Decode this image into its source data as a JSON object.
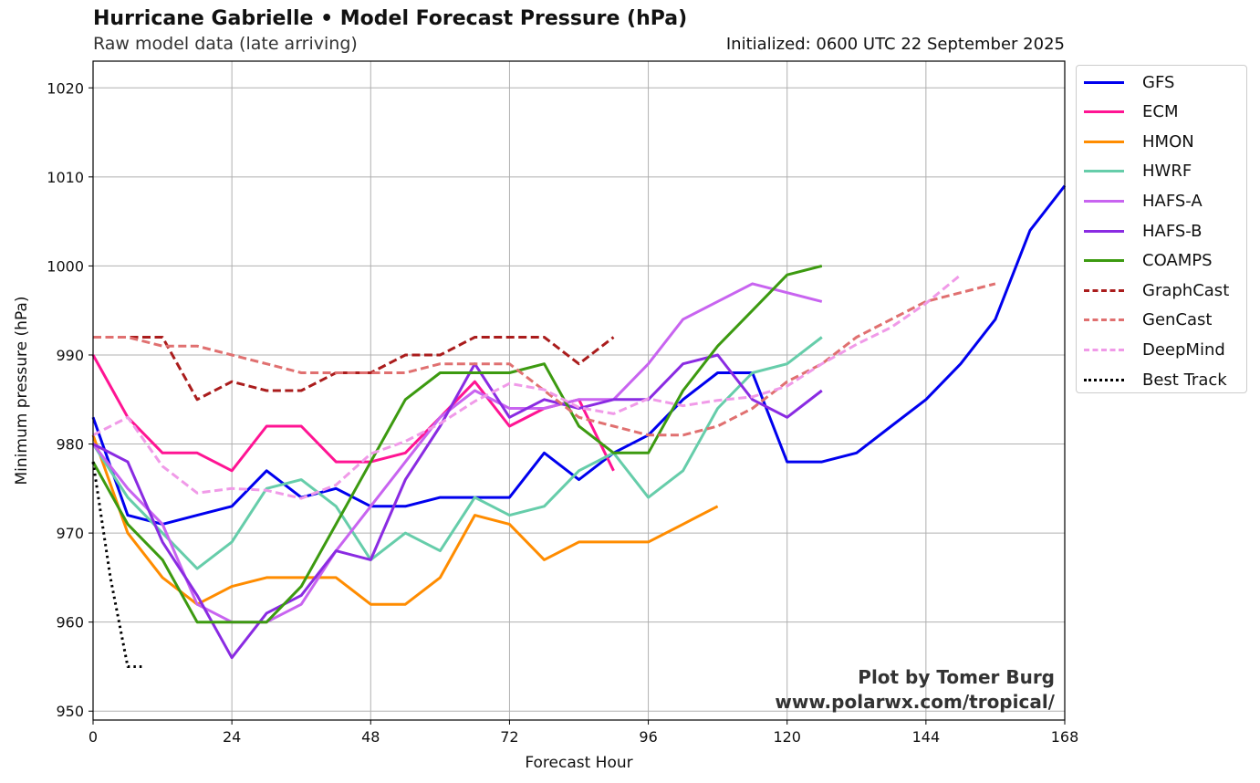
{
  "header": {
    "title": "Hurricane Gabrielle • Model Forecast Pressure (hPa)",
    "subtitle": "Raw model data (late arriving)",
    "initialized": "Initialized: 0600 UTC 22 September 2025"
  },
  "credit": {
    "line1": "Plot by Tomer Burg",
    "line2": "www.polarwx.com/tropical/"
  },
  "chart_data": {
    "type": "line",
    "xlabel": "Forecast Hour",
    "ylabel": "Minimum pressure (hPa)",
    "xlim": [
      0,
      168
    ],
    "ylim": [
      949,
      1023
    ],
    "xticks": [
      0,
      24,
      48,
      72,
      96,
      120,
      144,
      168
    ],
    "yticks": [
      950,
      960,
      970,
      980,
      990,
      1000,
      1010,
      1020
    ],
    "grid": true,
    "legend_position": "outside-right",
    "series": [
      {
        "name": "GFS",
        "color": "#0000ee",
        "dash": "solid",
        "x": [
          0,
          6,
          12,
          18,
          24,
          30,
          36,
          42,
          48,
          54,
          60,
          66,
          72,
          78,
          84,
          90,
          96,
          102,
          108,
          114,
          120,
          126,
          132,
          138,
          144,
          150,
          156,
          162,
          168
        ],
        "y": [
          983,
          972,
          971,
          972,
          973,
          977,
          974,
          975,
          973,
          973,
          974,
          974,
          974,
          979,
          976,
          979,
          981,
          985,
          988,
          988,
          978,
          978,
          979,
          982,
          985,
          989,
          994,
          1004,
          1009
        ]
      },
      {
        "name": "ECM",
        "color": "#ff1493",
        "dash": "solid",
        "x": [
          0,
          6,
          12,
          18,
          24,
          30,
          36,
          42,
          48,
          54,
          60,
          66,
          72,
          78,
          84,
          90
        ],
        "y": [
          990,
          983,
          979,
          979,
          977,
          982,
          982,
          978,
          978,
          979,
          983,
          987,
          982,
          984,
          985,
          977
        ]
      },
      {
        "name": "HMON",
        "color": "#ff8c00",
        "dash": "solid",
        "x": [
          0,
          6,
          12,
          18,
          24,
          30,
          36,
          42,
          48,
          54,
          60,
          66,
          72,
          78,
          84,
          90,
          96,
          102,
          108
        ],
        "y": [
          981,
          970,
          965,
          962,
          964,
          965,
          965,
          965,
          962,
          962,
          965,
          972,
          971,
          967,
          969,
          969,
          969,
          971,
          973
        ]
      },
      {
        "name": "HWRF",
        "color": "#66cdaa",
        "dash": "solid",
        "x": [
          0,
          6,
          12,
          18,
          24,
          30,
          36,
          42,
          48,
          54,
          60,
          66,
          72,
          78,
          84,
          90,
          96,
          102,
          108,
          114,
          120,
          126
        ],
        "y": [
          980,
          974,
          970,
          966,
          969,
          975,
          976,
          973,
          967,
          970,
          968,
          974,
          972,
          973,
          977,
          979,
          974,
          977,
          984,
          988,
          989,
          992
        ]
      },
      {
        "name": "HAFS-A",
        "color": "#c864f0",
        "dash": "solid",
        "x": [
          0,
          6,
          12,
          18,
          24,
          30,
          36,
          42,
          48,
          54,
          60,
          66,
          72,
          78,
          84,
          90,
          96,
          102,
          108,
          114,
          120,
          126
        ],
        "y": [
          980,
          975,
          971,
          962,
          960,
          960,
          962,
          968,
          973,
          978,
          983,
          986,
          984,
          984,
          985,
          985,
          989,
          994,
          996,
          998,
          997,
          996
        ]
      },
      {
        "name": "HAFS-B",
        "color": "#8a2be2",
        "dash": "solid",
        "x": [
          0,
          6,
          12,
          18,
          24,
          30,
          36,
          42,
          48,
          54,
          60,
          66,
          72,
          78,
          84,
          90,
          96,
          102,
          108,
          114,
          120,
          126
        ],
        "y": [
          980,
          978,
          969,
          963,
          956,
          961,
          963,
          968,
          967,
          976,
          982,
          989,
          983,
          985,
          984,
          985,
          985,
          989,
          990,
          985,
          983,
          986
        ]
      },
      {
        "name": "COAMPS",
        "color": "#3c9a10",
        "dash": "solid",
        "x": [
          0,
          6,
          12,
          18,
          24,
          30,
          36,
          42,
          48,
          54,
          60,
          66,
          72,
          78,
          84,
          90,
          96,
          102,
          108,
          114,
          120,
          126
        ],
        "y": [
          978,
          971,
          967,
          960,
          960,
          960,
          964,
          971,
          978,
          985,
          988,
          988,
          988,
          989,
          982,
          979,
          979,
          986,
          991,
          995,
          999,
          1000
        ]
      },
      {
        "name": "GraphCast",
        "color": "#aa1c1c",
        "dash": "dashed",
        "x": [
          0,
          6,
          12,
          18,
          24,
          30,
          36,
          42,
          48,
          54,
          60,
          66,
          72,
          78,
          84,
          90
        ],
        "y": [
          992,
          992,
          992,
          985,
          987,
          986,
          986,
          988,
          988,
          990,
          990,
          992,
          992,
          992,
          989,
          992
        ]
      },
      {
        "name": "GenCast",
        "color": "#e07070",
        "dash": "dashed",
        "x": [
          0,
          6,
          12,
          18,
          24,
          30,
          36,
          42,
          48,
          54,
          60,
          66,
          72,
          78,
          84,
          90,
          96,
          102,
          108,
          114,
          120,
          126,
          132,
          138,
          144,
          150,
          156
        ],
        "y": [
          992,
          992,
          991,
          991,
          990,
          989,
          988,
          988,
          988,
          988,
          989,
          989,
          989,
          986,
          983,
          982,
          981,
          981,
          982,
          984,
          987,
          989,
          992,
          994,
          996,
          997,
          998
        ]
      },
      {
        "name": "DeepMind",
        "color": "#f09ae8",
        "dash": "dashed",
        "x": [
          0,
          6,
          12,
          18,
          24,
          30,
          36,
          42,
          48,
          54,
          60,
          66,
          72,
          78,
          84,
          90,
          96,
          102,
          108,
          114,
          120,
          126,
          132,
          138,
          144,
          150
        ],
        "y": [
          981,
          983,
          977.5,
          974.5,
          975,
          974.8,
          973.9,
          975.4,
          978.9,
          980.3,
          982.3,
          984.8,
          986.8,
          986.1,
          984.1,
          983.4,
          985.1,
          984.3,
          984.9,
          985.3,
          986.5,
          989,
          991.2,
          993.1,
          995.8,
          999
        ]
      },
      {
        "name": "Best Track",
        "color": "#000000",
        "dash": "dotted",
        "x": [
          0,
          3,
          6,
          9
        ],
        "y": [
          978,
          965,
          955,
          955
        ]
      }
    ]
  }
}
